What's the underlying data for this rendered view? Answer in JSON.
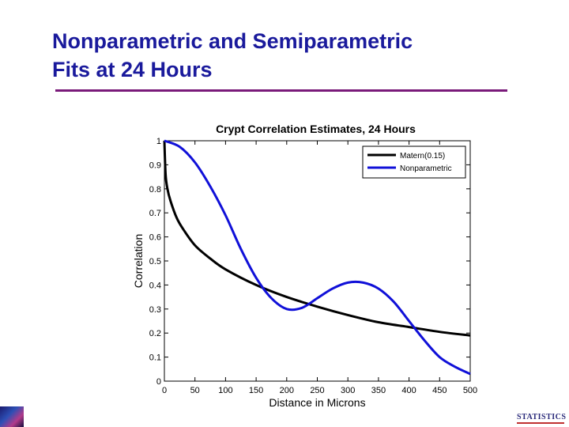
{
  "slide": {
    "title_line1": "Nonparametric and Semiparametric",
    "title_line2": "Fits at 24 Hours",
    "logo_right_text": "STATISTICS",
    "colors": {
      "title": "#1a1a9c",
      "rule": "#7a1a7a"
    }
  },
  "chart_data": {
    "type": "line",
    "title": "Crypt Correlation Estimates, 24 Hours",
    "xlabel": "Distance in Microns",
    "ylabel": "Correlation",
    "xlim": [
      0,
      500
    ],
    "ylim": [
      0,
      1
    ],
    "xticks": [
      0,
      50,
      100,
      150,
      200,
      250,
      300,
      350,
      400,
      450,
      500
    ],
    "xtick_labels": [
      "0",
      "50",
      "100",
      "150",
      "200",
      "250",
      "300",
      "350",
      "400",
      "450",
      "500"
    ],
    "yticks": [
      0,
      0.1,
      0.2,
      0.3,
      0.4,
      0.5,
      0.6,
      0.7,
      0.8,
      0.9,
      1
    ],
    "ytick_labels": [
      "0",
      "0.1",
      "0.2",
      "0.3",
      "0.4",
      "0.5",
      "0.6",
      "0.7",
      "0.8",
      "0.9",
      "1"
    ],
    "grid": false,
    "legend_position": "top-right",
    "series": [
      {
        "name": "Matern(0.15)",
        "color": "#000000",
        "x": [
          0,
          2,
          5,
          10,
          20,
          30,
          50,
          75,
          100,
          150,
          200,
          250,
          300,
          350,
          400,
          450,
          500
        ],
        "y": [
          1.0,
          0.86,
          0.8,
          0.75,
          0.68,
          0.635,
          0.565,
          0.51,
          0.465,
          0.4,
          0.35,
          0.31,
          0.275,
          0.245,
          0.225,
          0.205,
          0.19
        ]
      },
      {
        "name": "Nonparametric",
        "color": "#1010d8",
        "x": [
          0,
          25,
          50,
          75,
          100,
          125,
          150,
          175,
          200,
          225,
          250,
          275,
          300,
          325,
          350,
          375,
          400,
          425,
          450,
          475,
          500
        ],
        "y": [
          1.0,
          0.975,
          0.91,
          0.81,
          0.69,
          0.55,
          0.43,
          0.345,
          0.3,
          0.305,
          0.345,
          0.385,
          0.41,
          0.41,
          0.385,
          0.33,
          0.25,
          0.17,
          0.1,
          0.06,
          0.03
        ]
      }
    ]
  }
}
